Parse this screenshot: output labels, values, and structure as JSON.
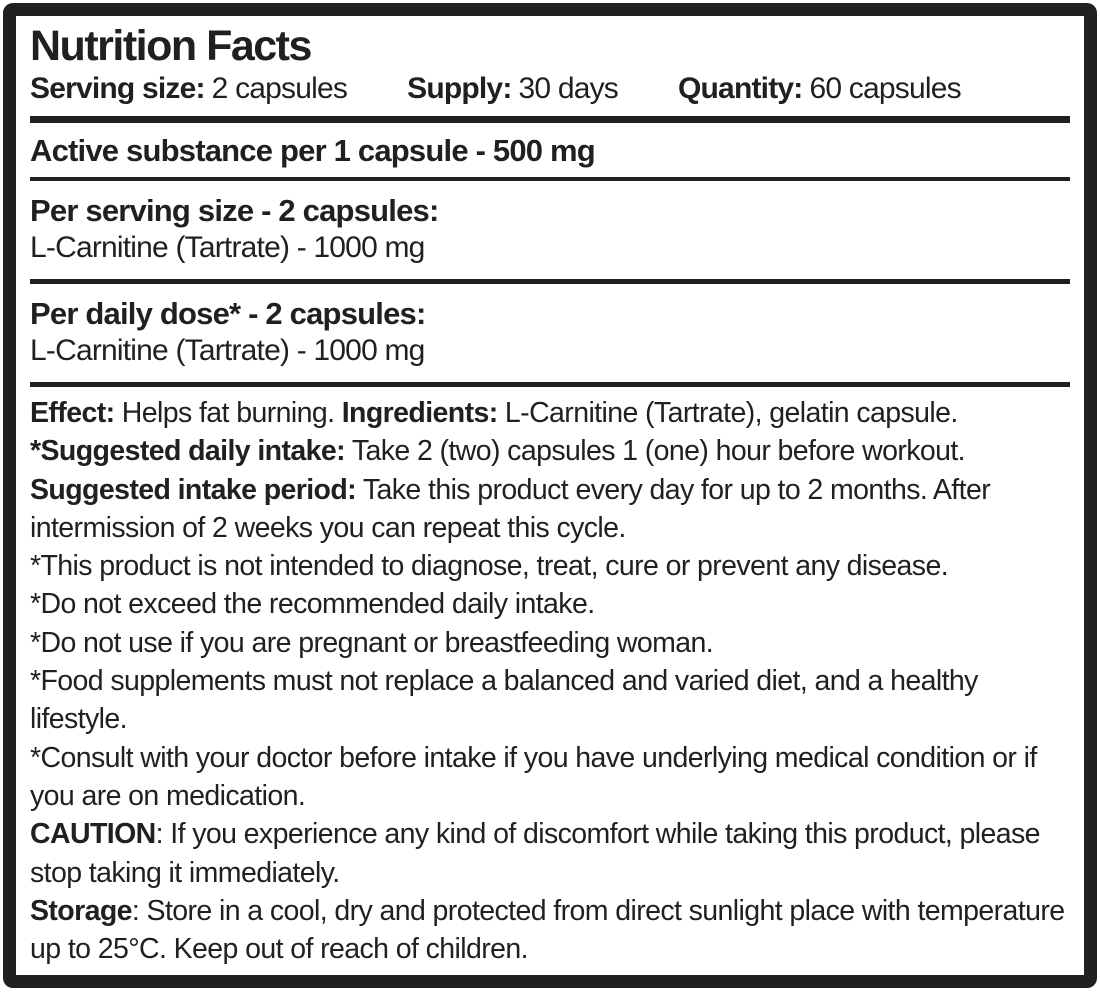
{
  "label": {
    "title": "Nutrition Facts",
    "serving_row": [
      {
        "label": "Serving size:",
        "value": "2 capsules"
      },
      {
        "label": "Supply:",
        "value": "30 days"
      },
      {
        "label": "Quantity:",
        "value": "60 capsules"
      }
    ],
    "active_substance": "Active substance per 1 capsule - 500 mg",
    "sections": [
      {
        "heading": "Per serving size - 2 capsules:",
        "line": "L-Carnitine (Tartrate) - 1000 mg"
      },
      {
        "heading": "Per daily dose* - 2 capsules:",
        "line": "L-Carnitine (Tartrate) - 1000 mg"
      }
    ],
    "paragraphs": [
      [
        {
          "t": "Effect:",
          "b": true
        },
        {
          "t": " Helps fat burning. ",
          "b": false
        },
        {
          "t": "Ingredients:",
          "b": true
        },
        {
          "t": " L-Carnitine (Tartrate), gelatin capsule. ",
          "b": false
        },
        {
          "t": "*Suggested daily intake:",
          "b": true
        },
        {
          "t": " Take 2 (two) capsules 1 (one) hour before workout. ",
          "b": false
        },
        {
          "t": "Suggested intake period:",
          "b": true
        },
        {
          "t": " Take this product every day for up to 2 months. After intermission of 2 weeks you can repeat this cycle.",
          "b": false
        }
      ],
      [
        {
          "t": "*This product is not intended to diagnose, treat, cure or prevent any disease.",
          "b": false
        }
      ],
      [
        {
          "t": "*Do not exceed the recommended daily intake.",
          "b": false
        }
      ],
      [
        {
          "t": "*Do not use if you are pregnant or breastfeeding woman.",
          "b": false
        }
      ],
      [
        {
          "t": "*Food supplements must not replace a balanced and varied diet, and a healthy lifestyle.",
          "b": false
        }
      ],
      [
        {
          "t": "*Consult with your doctor before intake if you have underlying medical condition or if you are on medication.",
          "b": false
        }
      ],
      [
        {
          "t": "CAUTION",
          "b": true
        },
        {
          "t": ": If you experience any kind of discomfort while taking this product, please stop taking it immediately.",
          "b": false
        }
      ],
      [
        {
          "t": "Storage",
          "b": true
        },
        {
          "t": ": Store in a cool, dry and protected from direct sunlight place with temperature up to 25°C. Keep out of reach of children.",
          "b": false
        }
      ]
    ],
    "colors": {
      "ink": "#221f20",
      "background": "#ffffff"
    }
  }
}
